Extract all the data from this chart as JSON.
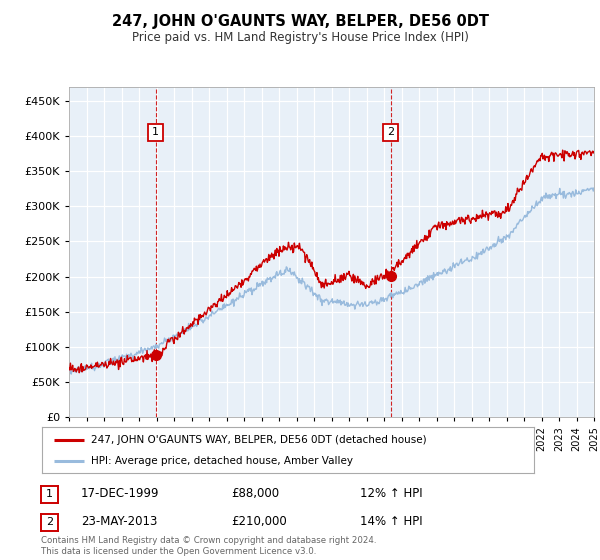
{
  "title": "247, JOHN O'GAUNTS WAY, BELPER, DE56 0DT",
  "subtitle": "Price paid vs. HM Land Registry's House Price Index (HPI)",
  "legend_line1": "247, JOHN O'GAUNTS WAY, BELPER, DE56 0DT (detached house)",
  "legend_line2": "HPI: Average price, detached house, Amber Valley",
  "footnote": "Contains HM Land Registry data © Crown copyright and database right 2024.\nThis data is licensed under the Open Government Licence v3.0.",
  "transaction1_label": "1",
  "transaction1_date": "17-DEC-1999",
  "transaction1_price": "£88,000",
  "transaction1_hpi": "12% ↑ HPI",
  "transaction2_label": "2",
  "transaction2_date": "23-MAY-2013",
  "transaction2_price": "£210,000",
  "transaction2_hpi": "14% ↑ HPI",
  "sale_color": "#cc0000",
  "hpi_color": "#99bbdd",
  "vline_color": "#cc0000",
  "plot_bg_color": "#e8f0f8",
  "ylim": [
    0,
    470000
  ],
  "yticks": [
    0,
    50000,
    100000,
    150000,
    200000,
    250000,
    300000,
    350000,
    400000,
    450000
  ],
  "year_start": 1995,
  "year_end": 2025,
  "transaction1_year": 1999.96,
  "transaction2_year": 2013.38,
  "transaction1_price_val": 88000,
  "transaction2_price_val": 210000
}
